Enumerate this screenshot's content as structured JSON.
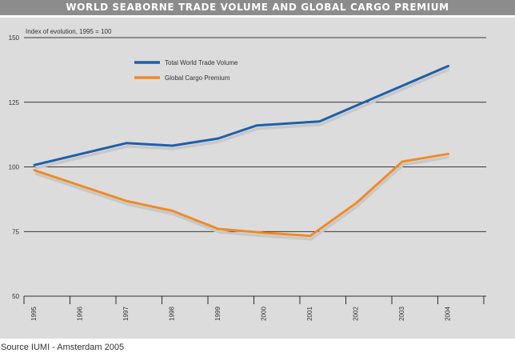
{
  "title": "WORLD SEABORNE TRADE VOLUME AND GLOBAL CARGO PREMIUM",
  "source": "Source IUMI - Amsterdam 2005",
  "chart_data": {
    "type": "line",
    "title": "WORLD SEABORNE TRADE VOLUME AND GLOBAL CARGO PREMIUM",
    "ylabel": "Index of evolution, 1995 = 100",
    "xlabel": "",
    "categories": [
      "1995",
      "1996",
      "1997",
      "1998",
      "1999",
      "2000",
      "2001",
      "2002",
      "2003",
      "2004"
    ],
    "ylim": [
      50,
      150
    ],
    "yticks": [
      50,
      75,
      100,
      125,
      150
    ],
    "grid": true,
    "legend_position": "top-left",
    "series": [
      {
        "name": "Total World Trade Volume",
        "color": "#1f5fa8",
        "points": [
          {
            "x": 1995,
            "y": 100.7
          },
          {
            "x": 1997,
            "y": 109.2
          },
          {
            "x": 1998,
            "y": 108.2
          },
          {
            "x": 1999,
            "y": 111.0
          },
          {
            "x": 1999.83,
            "y": 116.0
          },
          {
            "x": 2001.2,
            "y": 117.6
          },
          {
            "x": 2004,
            "y": 139.0
          }
        ]
      },
      {
        "name": "Global Cargo Premium",
        "color": "#f08a24",
        "points": [
          {
            "x": 1995,
            "y": 98.7
          },
          {
            "x": 1997,
            "y": 86.8
          },
          {
            "x": 1998,
            "y": 83.0
          },
          {
            "x": 1999,
            "y": 76.0
          },
          {
            "x": 2000,
            "y": 74.5
          },
          {
            "x": 2001,
            "y": 73.3
          },
          {
            "x": 2002,
            "y": 86.0
          },
          {
            "x": 2003,
            "y": 102.0
          },
          {
            "x": 2004,
            "y": 105.0
          }
        ]
      }
    ],
    "shadow_color": "#c8c8c8",
    "gridline_color": "#000000"
  }
}
